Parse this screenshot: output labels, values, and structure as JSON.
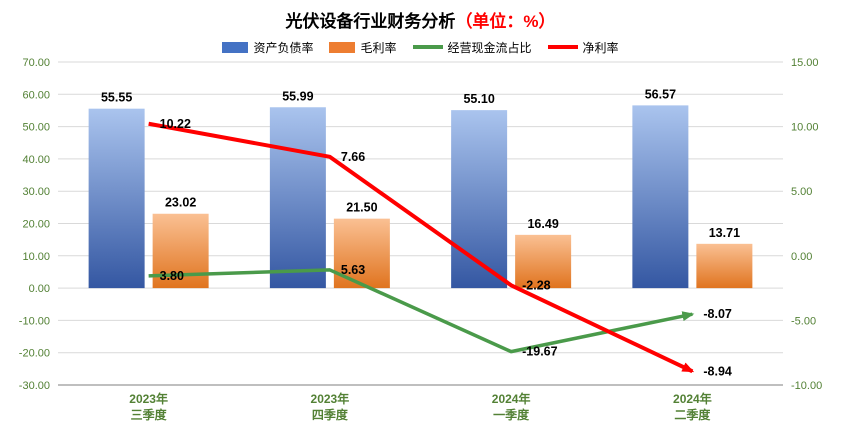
{
  "title": {
    "main": "光伏设备行业财务分析",
    "unit": "（单位：%）"
  },
  "legend": [
    {
      "label": "资产负债率",
      "swatch": "bar",
      "color": "#4472c4"
    },
    {
      "label": "毛利率",
      "swatch": "bar",
      "color": "#ed7d31"
    },
    {
      "label": "经营现金流占比",
      "swatch": "line",
      "color": "#4a9a4a"
    },
    {
      "label": "净利率",
      "swatch": "line",
      "color": "#ff0000"
    }
  ],
  "chart_data": {
    "type": "combo-bar-line",
    "title": "光伏设备行业财务分析（单位：%）",
    "categories": [
      [
        "2023年",
        "三季度"
      ],
      [
        "2023年",
        "四季度"
      ],
      [
        "2024年",
        "一季度"
      ],
      [
        "2024年",
        "二季度"
      ]
    ],
    "series": [
      {
        "name": "资产负债率",
        "kind": "bar",
        "axis": "left",
        "values": [
          55.55,
          55.99,
          55.1,
          56.57
        ],
        "gradient": [
          "#aac4ee",
          "#3457a2"
        ]
      },
      {
        "name": "毛利率",
        "kind": "bar",
        "axis": "left",
        "values": [
          23.02,
          21.5,
          16.49,
          13.71
        ],
        "gradient": [
          "#fac093",
          "#e0741f"
        ]
      },
      {
        "name": "经营现金流占比",
        "kind": "line",
        "axis": "left",
        "values": [
          3.8,
          5.63,
          -19.67,
          -8.07
        ],
        "color": "#4a9a4a"
      },
      {
        "name": "净利率",
        "kind": "line",
        "axis": "right",
        "values": [
          10.22,
          7.66,
          -2.28,
          -8.94
        ],
        "color": "#ff0000"
      }
    ],
    "left_axis": {
      "min": -30,
      "max": 70,
      "step": 10
    },
    "right_axis": {
      "min": -10,
      "max": 15,
      "step": 5
    },
    "grid": true,
    "legend_position": "top",
    "axis_label_color": "#538135",
    "data_label_color": "#000000",
    "gridline_color": "#d9d9d9",
    "axis_line_color": "#7f7f7f"
  }
}
